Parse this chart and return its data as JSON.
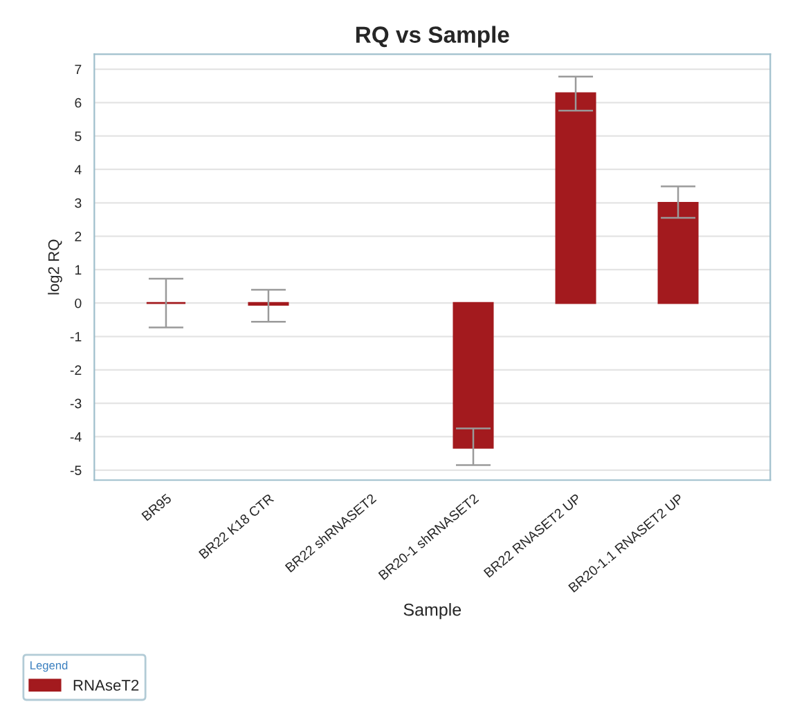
{
  "chart_data": {
    "type": "bar",
    "title": "RQ vs Sample",
    "xlabel": "Sample",
    "ylabel": "log2 RQ",
    "legend_title": "Legend",
    "categories": [
      "BR95",
      "BR22 K18 CTR",
      "BR22 shRNASET2",
      "BR20-1 shRNASET2",
      "BR22 RNASET2 UP",
      "BR20-1.1 RNASET2 UP"
    ],
    "series": [
      {
        "name": "RNAseT2",
        "color": "#a31a1e",
        "values": [
          0,
          -0.05,
          null,
          -4.33,
          6.28,
          3.0
        ],
        "errors": [
          0.73,
          [
            -0.56,
            0.4
          ],
          null,
          [
            -4.85,
            -3.75
          ],
          [
            5.76,
            6.78
          ],
          [
            2.55,
            3.49
          ]
        ]
      }
    ],
    "ylim": [
      -5.3,
      7.45
    ],
    "yticks": [
      -5,
      -4,
      -3,
      -2,
      -1,
      0,
      1,
      2,
      3,
      4,
      5,
      6,
      7
    ],
    "grid": "y",
    "legend": "bottom"
  }
}
